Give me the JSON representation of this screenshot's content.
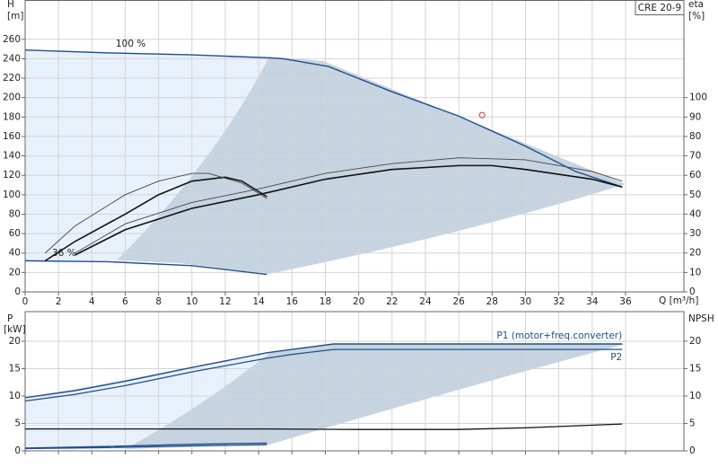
{
  "chart_data": [
    {
      "type": "line",
      "title": "CRE 20-9",
      "ylabel": "H",
      "yunit": "[m]",
      "y2label": "eta",
      "y2unit": "[%]",
      "xlabel": "Q [m³/h]",
      "annotations": [
        "100 %",
        "36 %"
      ],
      "xlim": [
        0,
        39.5
      ],
      "xticks": [
        0,
        2,
        4,
        6,
        8,
        10,
        12,
        14,
        16,
        18,
        20,
        22,
        24,
        26,
        28,
        30,
        32,
        34,
        36
      ],
      "ylim": [
        0,
        300
      ],
      "yticks": [
        0,
        20,
        40,
        60,
        80,
        100,
        120,
        140,
        160,
        180,
        200,
        220,
        240,
        260
      ],
      "y2lim": [
        0,
        150
      ],
      "y2ticks": [
        0,
        10,
        20,
        30,
        40,
        50,
        60,
        70,
        80,
        90,
        100
      ],
      "grid": true,
      "series": [
        {
          "color": "#1f4e8c",
          "width": 1.4,
          "x": [
            0,
            5,
            10,
            14.5,
            15.5,
            18.2,
            22,
            26,
            30,
            33,
            35.8
          ],
          "values": [
            249,
            246,
            244,
            241,
            240,
            232,
            206,
            181,
            150,
            124,
            108
          ]
        },
        {
          "color": "#1f4e8c",
          "width": 1.4,
          "x": [
            0,
            5,
            10,
            14.5
          ],
          "values": [
            32,
            31,
            27,
            18
          ]
        },
        {
          "color": "#111111",
          "width": 1.6,
          "axis": "y2",
          "x": [
            3,
            6,
            10,
            14,
            18,
            22,
            26,
            28,
            30,
            34,
            35.8
          ],
          "values": [
            19,
            32,
            43,
            50,
            58,
            63,
            65,
            65,
            63,
            58,
            54
          ]
        },
        {
          "color": "#444444",
          "width": 0.9,
          "axis": "y2",
          "x": [
            3,
            6,
            10,
            14,
            18,
            22,
            26,
            30,
            34,
            35.8
          ],
          "values": [
            20,
            35,
            46,
            53,
            61,
            66,
            69,
            68,
            62,
            57
          ]
        },
        {
          "color": "#111111",
          "width": 1.6,
          "axis": "y2",
          "x": [
            1.2,
            3,
            6,
            8,
            10,
            12,
            13,
            14.5
          ],
          "values": [
            16,
            26,
            40,
            50,
            57,
            59,
            57,
            49
          ]
        },
        {
          "color": "#444444",
          "width": 0.9,
          "axis": "y2",
          "x": [
            1.2,
            3,
            6,
            8,
            10,
            11,
            13,
            14.5
          ],
          "values": [
            20,
            34,
            50,
            57,
            61,
            61,
            56,
            48
          ]
        }
      ],
      "markers": [
        {
          "x": 27.4,
          "y": 182,
          "color": "#e03030"
        }
      ]
    },
    {
      "type": "line",
      "ylabel": "P",
      "yunit": "[kW]",
      "y2label": "NPSH",
      "xlim": [
        0,
        39.5
      ],
      "ylim": [
        0,
        25.4
      ],
      "yticks": [
        0,
        5,
        10,
        15,
        20
      ],
      "y2lim": [
        0,
        25.4
      ],
      "y2ticks": [
        0,
        5,
        10,
        15,
        20
      ],
      "grid": true,
      "series": [
        {
          "name": "P1 (motor+freq.converter)",
          "color": "#1f4e8c",
          "width": 1.4,
          "x": [
            0,
            3,
            6,
            10,
            14.5,
            16,
            18.5,
            35.8
          ],
          "values": [
            9.7,
            11,
            12.7,
            15.2,
            17.9,
            18.5,
            19.5,
            19.5
          ]
        },
        {
          "name": "P2",
          "color": "#1f4e8c",
          "width": 1.2,
          "x": [
            0,
            3,
            6,
            10,
            14.5,
            16,
            18.5,
            35.8
          ],
          "values": [
            9.1,
            10.3,
            11.9,
            14.4,
            16.9,
            17.6,
            18.5,
            18.5
          ]
        },
        {
          "color": "#1f4e8c",
          "width": 1.4,
          "x": [
            0,
            5,
            10,
            14.5
          ],
          "values": [
            0.5,
            0.8,
            1.2,
            1.4
          ]
        },
        {
          "color": "#1f4e8c",
          "width": 1.2,
          "x": [
            0,
            5,
            10,
            14.5
          ],
          "values": [
            0.4,
            0.6,
            0.9,
            1.1
          ]
        },
        {
          "color": "#111111",
          "width": 1.3,
          "axis": "y2",
          "x": [
            0,
            14.5,
            20,
            26,
            30,
            35.8
          ],
          "values": [
            4,
            4,
            3.9,
            3.9,
            4.2,
            4.9
          ]
        }
      ]
    }
  ]
}
